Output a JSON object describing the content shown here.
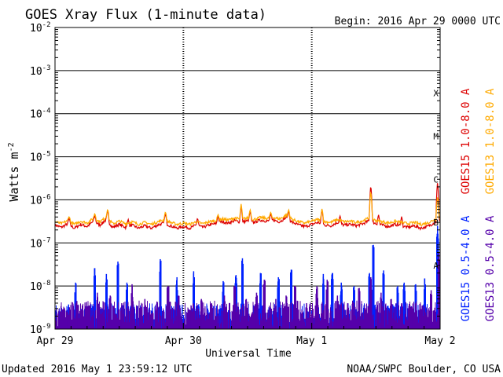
{
  "chart_data": {
    "type": "line",
    "title": "GOES Xray Flux (1-minute data)",
    "begin_label": "Begin:  2016 Apr 29 0000 UTC",
    "ylabel": "Watts m",
    "ylabel_sup": "-2",
    "xlabel": "Universal Time",
    "yscale": "log",
    "ylim": [
      1e-09,
      0.01
    ],
    "y_ticks": [
      {
        "value": 0.01,
        "label": "10",
        "exp": "-2"
      },
      {
        "value": 0.001,
        "label": "10",
        "exp": "-3"
      },
      {
        "value": 0.0001,
        "label": "10",
        "exp": "-4"
      },
      {
        "value": 1e-05,
        "label": "10",
        "exp": "-5"
      },
      {
        "value": 1e-06,
        "label": "10",
        "exp": "-6"
      },
      {
        "value": 1e-07,
        "label": "10",
        "exp": "-7"
      },
      {
        "value": 1e-08,
        "label": "10",
        "exp": "-8"
      },
      {
        "value": 1e-09,
        "label": "10",
        "exp": "-9"
      }
    ],
    "x_ticks": [
      {
        "day": 0,
        "label": "Apr 29"
      },
      {
        "day": 1,
        "label": "Apr 30"
      },
      {
        "day": 2,
        "label": "May 1"
      },
      {
        "day": 3,
        "label": "May 2"
      }
    ],
    "xlim_days": [
      0,
      3
    ],
    "flare_classes": [
      {
        "label": "X",
        "value": 0.0003
      },
      {
        "label": "M",
        "value": 3e-05
      },
      {
        "label": "C",
        "value": 3e-06
      },
      {
        "label": "B",
        "value": 3e-07
      },
      {
        "label": "A",
        "value": 3e-08
      }
    ],
    "grid": true,
    "series": [
      {
        "name": "GOES15 1.0-8.0 A",
        "color": "#dd0000",
        "points": [
          [
            0.0,
            2.6e-07
          ],
          [
            0.05,
            2.3e-07
          ],
          [
            0.1,
            2.8e-07
          ],
          [
            0.15,
            2.2e-07
          ],
          [
            0.2,
            2.7e-07
          ],
          [
            0.25,
            2.4e-07
          ],
          [
            0.3,
            3.2e-07
          ],
          [
            0.35,
            2.6e-07
          ],
          [
            0.4,
            3.5e-07
          ],
          [
            0.45,
            2.3e-07
          ],
          [
            0.5,
            2.7e-07
          ],
          [
            0.55,
            2.3e-07
          ],
          [
            0.6,
            2.6e-07
          ],
          [
            0.65,
            2.2e-07
          ],
          [
            0.7,
            2.5e-07
          ],
          [
            0.75,
            2.2e-07
          ],
          [
            0.8,
            2.6e-07
          ],
          [
            0.85,
            2.9e-07
          ],
          [
            0.9,
            2.5e-07
          ],
          [
            0.95,
            2.2e-07
          ],
          [
            1.0,
            2.4e-07
          ],
          [
            1.05,
            2.2e-07
          ],
          [
            1.1,
            2.6e-07
          ],
          [
            1.15,
            2.3e-07
          ],
          [
            1.2,
            2.6e-07
          ],
          [
            1.25,
            2.8e-07
          ],
          [
            1.3,
            3.1e-07
          ],
          [
            1.35,
            2.9e-07
          ],
          [
            1.4,
            3.3e-07
          ],
          [
            1.45,
            3e-07
          ],
          [
            1.5,
            3.3e-07
          ],
          [
            1.55,
            3e-07
          ],
          [
            1.6,
            3.4e-07
          ],
          [
            1.65,
            3.2e-07
          ],
          [
            1.7,
            3.4e-07
          ],
          [
            1.75,
            3.1e-07
          ],
          [
            1.8,
            3.9e-07
          ],
          [
            1.85,
            3e-07
          ],
          [
            1.9,
            2.6e-07
          ],
          [
            1.95,
            2.4e-07
          ],
          [
            2.0,
            2.7e-07
          ],
          [
            2.05,
            3e-07
          ],
          [
            2.1,
            2.6e-07
          ],
          [
            2.15,
            2.5e-07
          ],
          [
            2.2,
            3e-07
          ],
          [
            2.25,
            2.6e-07
          ],
          [
            2.3,
            2.7e-07
          ],
          [
            2.35,
            2.5e-07
          ],
          [
            2.4,
            2.8e-07
          ],
          [
            2.45,
            3.3e-07
          ],
          [
            2.5,
            2.8e-07
          ],
          [
            2.55,
            2.6e-07
          ],
          [
            2.6,
            2.4e-07
          ],
          [
            2.65,
            2.7e-07
          ],
          [
            2.7,
            2.5e-07
          ],
          [
            2.75,
            2.3e-07
          ],
          [
            2.8,
            2.5e-07
          ],
          [
            2.85,
            2.2e-07
          ],
          [
            2.9,
            2.4e-07
          ],
          [
            2.95,
            2.9e-07
          ],
          [
            3.0,
            3.5e-07
          ]
        ],
        "peaks": [
          [
            0.11,
            3.8e-07
          ],
          [
            0.31,
            4.4e-07
          ],
          [
            0.41,
            5.8e-07
          ],
          [
            0.57,
            3.6e-07
          ],
          [
            0.86,
            5e-07
          ],
          [
            1.11,
            3.8e-07
          ],
          [
            1.27,
            4.2e-07
          ],
          [
            1.45,
            7.5e-07
          ],
          [
            1.52,
            5.5e-07
          ],
          [
            1.68,
            4.8e-07
          ],
          [
            1.82,
            5.6e-07
          ],
          [
            2.08,
            6e-07
          ],
          [
            2.22,
            4.3e-07
          ],
          [
            2.46,
            2.2e-06
          ],
          [
            2.52,
            4.6e-07
          ],
          [
            2.7,
            4.1e-07
          ],
          [
            2.98,
            2.6e-06
          ]
        ]
      },
      {
        "name": "GOES13 1.0-8.0 A",
        "color": "#ffaa00",
        "points": [
          [
            0.0,
            3.1e-07
          ],
          [
            0.05,
            2.8e-07
          ],
          [
            0.1,
            3.3e-07
          ],
          [
            0.15,
            2.7e-07
          ],
          [
            0.2,
            3.2e-07
          ],
          [
            0.25,
            2.9e-07
          ],
          [
            0.3,
            3.7e-07
          ],
          [
            0.35,
            3.1e-07
          ],
          [
            0.4,
            4e-07
          ],
          [
            0.45,
            2.8e-07
          ],
          [
            0.5,
            3.2e-07
          ],
          [
            0.55,
            2.8e-07
          ],
          [
            0.6,
            3.1e-07
          ],
          [
            0.65,
            2.7e-07
          ],
          [
            0.7,
            3e-07
          ],
          [
            0.75,
            2.7e-07
          ],
          [
            0.8,
            3.1e-07
          ],
          [
            0.85,
            3.4e-07
          ],
          [
            0.9,
            3e-07
          ],
          [
            0.95,
            2.7e-07
          ],
          [
            1.0,
            2.9e-07
          ],
          [
            1.05,
            2.7e-07
          ],
          [
            1.1,
            3.1e-07
          ],
          [
            1.15,
            2.8e-07
          ],
          [
            1.2,
            3.1e-07
          ],
          [
            1.25,
            3.3e-07
          ],
          [
            1.3,
            3.6e-07
          ],
          [
            1.35,
            3.4e-07
          ],
          [
            1.4,
            3.8e-07
          ],
          [
            1.45,
            3.5e-07
          ],
          [
            1.5,
            3.8e-07
          ],
          [
            1.55,
            3.5e-07
          ],
          [
            1.6,
            3.9e-07
          ],
          [
            1.65,
            3.7e-07
          ],
          [
            1.7,
            3.9e-07
          ],
          [
            1.75,
            3.6e-07
          ],
          [
            1.8,
            4.4e-07
          ],
          [
            1.85,
            3.5e-07
          ],
          [
            1.9,
            3.1e-07
          ],
          [
            1.95,
            2.9e-07
          ],
          [
            2.0,
            3.2e-07
          ],
          [
            2.05,
            3.5e-07
          ],
          [
            2.1,
            3.1e-07
          ],
          [
            2.15,
            3e-07
          ],
          [
            2.2,
            3.5e-07
          ],
          [
            2.25,
            3.1e-07
          ],
          [
            2.3,
            3.2e-07
          ],
          [
            2.35,
            3e-07
          ],
          [
            2.4,
            3.3e-07
          ],
          [
            2.45,
            3.8e-07
          ],
          [
            2.5,
            3.3e-07
          ],
          [
            2.55,
            3.1e-07
          ],
          [
            2.6,
            2.9e-07
          ],
          [
            2.65,
            3.2e-07
          ],
          [
            2.7,
            3e-07
          ],
          [
            2.75,
            2.8e-07
          ],
          [
            2.8,
            3e-07
          ],
          [
            2.85,
            2.7e-07
          ],
          [
            2.9,
            2.9e-07
          ],
          [
            2.95,
            3.4e-07
          ],
          [
            3.0,
            4e-07
          ]
        ],
        "peaks": [
          [
            0.11,
            4.2e-07
          ],
          [
            0.31,
            4.9e-07
          ],
          [
            0.41,
            6.2e-07
          ],
          [
            0.86,
            5.4e-07
          ],
          [
            1.27,
            4.6e-07
          ],
          [
            1.45,
            8e-07
          ],
          [
            1.52,
            6e-07
          ],
          [
            1.68,
            5.2e-07
          ],
          [
            1.82,
            6e-07
          ],
          [
            2.08,
            6.4e-07
          ],
          [
            2.46,
            1.6e-06
          ],
          [
            2.98,
            1.2e-06
          ]
        ]
      },
      {
        "name": "GOES15 0.5-4.0 A",
        "color": "#0022ff",
        "baseline": 1.3e-09,
        "spikes": [
          [
            0.16,
            1.2e-08
          ],
          [
            0.31,
            2.6e-08
          ],
          [
            0.4,
            1.9e-08
          ],
          [
            0.49,
            3.7e-08
          ],
          [
            0.56,
            1.2e-08
          ],
          [
            0.82,
            4.2e-08
          ],
          [
            0.95,
            1.6e-08
          ],
          [
            1.08,
            2.2e-08
          ],
          [
            1.31,
            1.3e-08
          ],
          [
            1.41,
            1.8e-08
          ],
          [
            1.46,
            4.4e-08
          ],
          [
            1.6,
            2e-08
          ],
          [
            1.74,
            1.6e-08
          ],
          [
            1.84,
            2.4e-08
          ],
          [
            2.09,
            1.9e-08
          ],
          [
            2.16,
            2e-08
          ],
          [
            2.23,
            1.2e-08
          ],
          [
            2.33,
            1e-08
          ],
          [
            2.45,
            2e-08
          ],
          [
            2.48,
            9e-08
          ],
          [
            2.56,
            2.3e-08
          ],
          [
            2.67,
            1e-08
          ],
          [
            2.72,
            1.2e-08
          ],
          [
            2.81,
            1.1e-08
          ],
          [
            2.88,
            1.5e-08
          ],
          [
            2.98,
            2.5e-07
          ]
        ]
      },
      {
        "name": "GOES13 0.5-4.0 A",
        "color": "#5500aa",
        "baseline": 1.5e-09,
        "spikes": [
          [
            0.04,
            2.2e-09
          ],
          [
            0.1,
            2.4e-09
          ],
          [
            0.17,
            4.5e-09
          ],
          [
            0.25,
            3e-09
          ],
          [
            0.33,
            7e-09
          ],
          [
            0.43,
            6e-09
          ],
          [
            0.52,
            4e-09
          ],
          [
            0.6,
            1.1e-08
          ],
          [
            0.7,
            5e-09
          ],
          [
            0.79,
            3e-09
          ],
          [
            0.88,
            1e-08
          ],
          [
            0.96,
            6e-09
          ],
          [
            1.06,
            3.5e-09
          ],
          [
            1.14,
            5e-09
          ],
          [
            1.22,
            4e-09
          ],
          [
            1.32,
            6e-09
          ],
          [
            1.4,
            1e-08
          ],
          [
            1.49,
            5e-09
          ],
          [
            1.57,
            7e-09
          ],
          [
            1.63,
            1.4e-08
          ],
          [
            1.72,
            5e-09
          ],
          [
            1.8,
            6e-09
          ],
          [
            1.87,
            1e-08
          ],
          [
            1.96,
            4e-09
          ],
          [
            2.04,
            1e-08
          ],
          [
            2.12,
            1.4e-08
          ],
          [
            2.2,
            6e-09
          ],
          [
            2.28,
            4e-09
          ],
          [
            2.37,
            9e-09
          ],
          [
            2.46,
            1.6e-08
          ],
          [
            2.54,
            7e-09
          ],
          [
            2.62,
            5e-09
          ],
          [
            2.7,
            4e-09
          ],
          [
            2.78,
            3e-09
          ],
          [
            2.86,
            3.5e-09
          ],
          [
            2.93,
            8e-09
          ],
          [
            2.99,
            6e-08
          ]
        ]
      }
    ]
  },
  "footer": {
    "updated": "Updated 2016 May  1 23:59:12 UTC",
    "source": "NOAA/SWPC Boulder, CO USA"
  }
}
